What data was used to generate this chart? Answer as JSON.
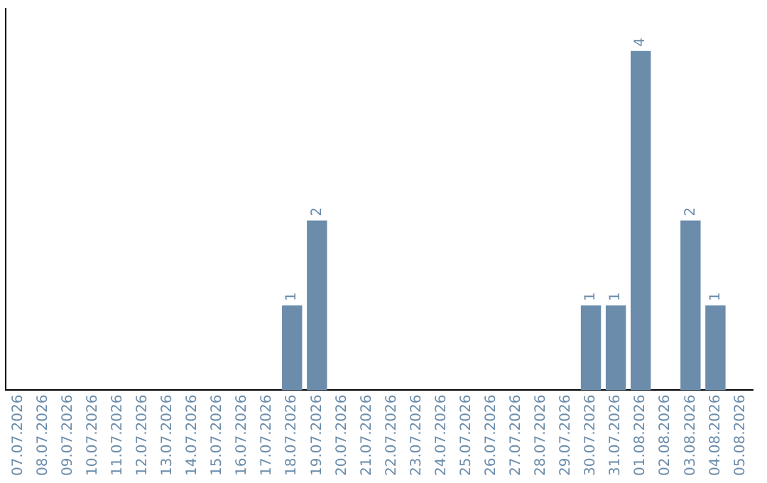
{
  "chart_data": {
    "type": "bar",
    "categories": [
      "07.07.2026",
      "08.07.2026",
      "09.07.2026",
      "10.07.2026",
      "11.07.2026",
      "12.07.2026",
      "13.07.2026",
      "14.07.2026",
      "15.07.2026",
      "16.07.2026",
      "17.07.2026",
      "18.07.2026",
      "19.07.2026",
      "20.07.2026",
      "21.07.2026",
      "22.07.2026",
      "23.07.2026",
      "24.07.2026",
      "25.07.2026",
      "26.07.2026",
      "27.07.2026",
      "28.07.2026",
      "29.07.2026",
      "30.07.2026",
      "31.07.2026",
      "01.08.2026",
      "02.08.2026",
      "03.08.2026",
      "04.08.2026",
      "05.08.2026"
    ],
    "values": [
      0,
      0,
      0,
      0,
      0,
      0,
      0,
      0,
      0,
      0,
      0,
      1,
      2,
      0,
      0,
      0,
      0,
      0,
      0,
      0,
      0,
      0,
      0,
      1,
      1,
      4,
      0,
      2,
      1,
      0
    ],
    "value_labels": [
      null,
      null,
      null,
      null,
      null,
      null,
      null,
      null,
      null,
      null,
      null,
      "1",
      "2",
      null,
      null,
      null,
      null,
      null,
      null,
      null,
      null,
      null,
      null,
      "1",
      "1",
      "4",
      null,
      "2",
      "1",
      null
    ],
    "color": "#6b8cab",
    "grid": false,
    "tick_labels": "x"
  }
}
